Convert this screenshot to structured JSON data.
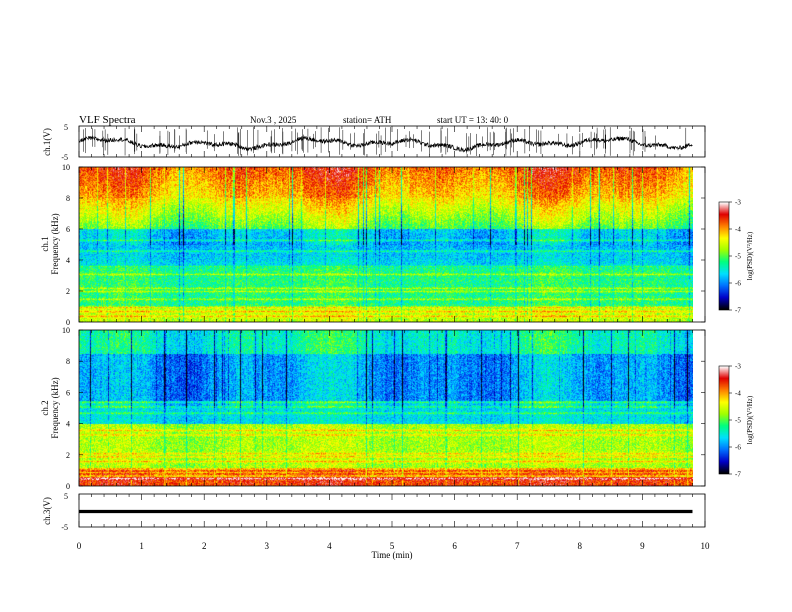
{
  "header": {
    "title": "VLF  Spectra",
    "date": "Nov.3  , 2025",
    "station": "station= ATH",
    "start": "start  UT  =   13: 40: 0"
  },
  "chart_data": [
    {
      "type": "line",
      "id": "ch1-waveform",
      "ylabel": "ch.1(V)",
      "ylim": [
        -5,
        5
      ],
      "ytick_labels": [
        "5",
        "-5"
      ],
      "series_color": "#000000"
    },
    {
      "type": "heatmap",
      "id": "ch1-spectrogram",
      "ylabel_top": "ch.1",
      "ylabel": "Frequency  (kHz)",
      "ylim": [
        0,
        10
      ],
      "ytick_labels": [
        "0",
        "2",
        "4",
        "6",
        "8",
        "10"
      ],
      "colorbar": {
        "range": [
          -7,
          -3
        ],
        "tick_labels": [
          "-3",
          "-4",
          "-5",
          "-6",
          "-7"
        ],
        "label": "log(PSD)(V²/Hz)"
      },
      "bands_khz": [
        0.4,
        0.7,
        1.0,
        1.5,
        2.0,
        2.2,
        3.1,
        3.6,
        4.6,
        5.3
      ]
    },
    {
      "type": "heatmap",
      "id": "ch2-spectrogram",
      "ylabel_top": "ch.2",
      "ylabel": "Frequency  (kHz)",
      "ylim": [
        0,
        10
      ],
      "ytick_labels": [
        "0",
        "2",
        "4",
        "6",
        "8",
        "10"
      ],
      "colorbar": {
        "range": [
          -7,
          -3
        ],
        "tick_labels": [
          "-3",
          "-4",
          "-5",
          "-6",
          "-7"
        ],
        "label": "log(PSD)(V²/Hz)"
      },
      "bands_khz": [
        0.5,
        0.8,
        1.0,
        1.6,
        1.9,
        2.1,
        3.3,
        3.6,
        4.7,
        5.1,
        5.4
      ]
    },
    {
      "type": "line",
      "id": "ch3-waveform",
      "ylabel": "ch.3(V)",
      "ylim": [
        -5,
        5
      ],
      "ytick_labels": [
        "5",
        "-5"
      ],
      "constant_value": 0
    }
  ],
  "x_axis": {
    "label": "Time  (min)",
    "range": [
      0,
      10
    ],
    "data_end": 9.8,
    "tick_labels": [
      "0",
      "1",
      "2",
      "3",
      "4",
      "5",
      "6",
      "7",
      "8",
      "9",
      "10"
    ]
  },
  "colors": {
    "scale": [
      "#000000",
      "#0000c8",
      "#0070ff",
      "#00e0ff",
      "#00ff80",
      "#a0ff00",
      "#ffff00",
      "#ff8000",
      "#e00000",
      "#ffffff"
    ]
  }
}
